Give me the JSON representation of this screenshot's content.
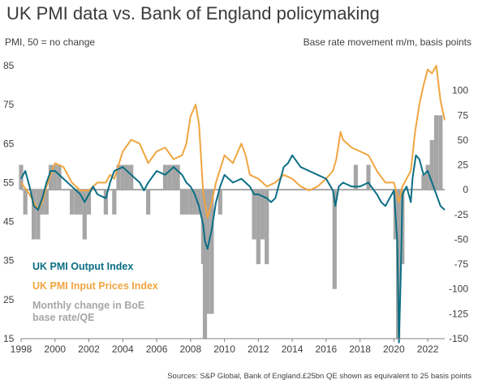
{
  "title": "UK PMI data vs. Bank of England policymaking",
  "left_axis_label": "PMI, 50 = no change",
  "right_axis_label": "Base rate movement m/m, basis points",
  "source": "Sources: S&P Global, Bank of England.£25bn QE shown as equivalent to 25 basis points",
  "legend": {
    "output": "UK PMI Output Index",
    "input": "UK PMI Input Prices Index",
    "boe_line1": "Monthly change in BoE",
    "boe_line2": "base rate/QE"
  },
  "colors": {
    "output": "#0b6e84",
    "input": "#f0a540",
    "boe": "#a6a6a6",
    "zero_line": "#a6a6a6"
  },
  "chart_data": {
    "type": "line",
    "x_ticks": [
      "1998",
      "2000",
      "2002",
      "2004",
      "2006",
      "2008",
      "2010",
      "2012",
      "2014",
      "2016",
      "2018",
      "2020",
      "2022"
    ],
    "xlim": [
      1998,
      2023
    ],
    "y_left": {
      "lim": [
        15,
        85
      ],
      "ticks": [
        15,
        25,
        35,
        45,
        55,
        65,
        75,
        85
      ]
    },
    "y_right": {
      "lim": [
        -150,
        125
      ],
      "ticks": [
        -150,
        -125,
        -100,
        -75,
        -50,
        -25,
        0,
        25,
        50,
        75,
        100
      ]
    },
    "grid": false,
    "series": [
      {
        "name": "UK PMI Output Index",
        "axis": "left",
        "kind": "line",
        "x": [
          1998.0,
          1998.25,
          1998.5,
          1998.75,
          1999.0,
          1999.25,
          1999.5,
          1999.75,
          2000.0,
          2000.5,
          2001.0,
          2001.5,
          2001.75,
          2002.0,
          2002.25,
          2002.5,
          2003.0,
          2003.25,
          2003.5,
          2004.0,
          2004.5,
          2005.0,
          2005.25,
          2005.5,
          2006.0,
          2006.5,
          2007.0,
          2007.5,
          2007.75,
          2008.0,
          2008.25,
          2008.5,
          2008.75,
          2008.85,
          2009.0,
          2009.25,
          2009.5,
          2009.75,
          2010.0,
          2010.5,
          2011.0,
          2011.5,
          2011.75,
          2012.0,
          2012.5,
          2012.75,
          2013.0,
          2013.25,
          2013.5,
          2013.75,
          2014.0,
          2014.5,
          2015.0,
          2015.5,
          2016.0,
          2016.4,
          2016.55,
          2016.75,
          2017.0,
          2017.5,
          2018.0,
          2018.5,
          2019.0,
          2019.25,
          2019.5,
          2019.75,
          2020.0,
          2020.2,
          2020.3,
          2020.4,
          2020.5,
          2020.75,
          2021.0,
          2021.1,
          2021.3,
          2021.5,
          2021.75,
          2022.0,
          2022.25,
          2022.5,
          2022.75,
          2023.0
        ],
        "y": [
          56,
          58,
          54,
          49,
          48,
          51,
          55,
          58,
          58,
          56,
          54,
          52,
          50,
          52,
          54,
          52,
          51,
          55,
          58,
          59,
          57,
          55,
          53,
          55,
          58,
          57,
          59,
          57,
          55,
          54,
          52,
          49,
          44,
          40,
          38,
          43,
          50,
          54,
          57,
          55,
          56,
          54,
          52,
          52,
          51,
          50,
          51,
          55,
          59,
          60,
          62,
          59,
          58,
          57,
          56,
          53,
          49,
          54,
          55,
          54,
          54,
          55,
          52,
          50,
          49,
          51,
          53,
          40,
          14,
          30,
          52,
          54,
          50,
          56,
          62,
          61,
          57,
          58,
          55,
          52,
          49,
          48
        ]
      },
      {
        "name": "UK PMI Input Prices Index",
        "axis": "left",
        "kind": "line",
        "x": [
          1998.0,
          1998.5,
          1999.0,
          1999.25,
          1999.5,
          1999.75,
          2000.0,
          2000.5,
          2001.0,
          2001.5,
          2002.0,
          2002.5,
          2003.0,
          2003.25,
          2003.5,
          2004.0,
          2004.5,
          2005.0,
          2005.5,
          2006.0,
          2006.5,
          2007.0,
          2007.5,
          2007.75,
          2008.0,
          2008.3,
          2008.5,
          2008.75,
          2009.0,
          2009.25,
          2009.5,
          2010.0,
          2010.5,
          2011.0,
          2011.25,
          2011.5,
          2012.0,
          2012.5,
          2013.0,
          2013.5,
          2014.0,
          2014.5,
          2015.0,
          2015.5,
          2016.0,
          2016.4,
          2016.6,
          2016.85,
          2017.0,
          2017.5,
          2018.0,
          2018.5,
          2019.0,
          2019.5,
          2020.0,
          2020.3,
          2020.5,
          2021.0,
          2021.25,
          2021.5,
          2021.75,
          2022.0,
          2022.25,
          2022.5,
          2022.75,
          2023.0
        ],
        "y": [
          55,
          52,
          48,
          50,
          54,
          57,
          60,
          59,
          55,
          53,
          53,
          55,
          55,
          57,
          56,
          63,
          66,
          65,
          60,
          63,
          64,
          61,
          62,
          65,
          72,
          75,
          70,
          52,
          46,
          50,
          55,
          62,
          60,
          65,
          62,
          57,
          56,
          54,
          55,
          57,
          56,
          54,
          53,
          54,
          56,
          58,
          61,
          68,
          66,
          64,
          63,
          62,
          58,
          55,
          55,
          50,
          54,
          58,
          68,
          75,
          80,
          84,
          83,
          85,
          76,
          71
        ]
      },
      {
        "name": "Monthly change in BoE base rate/QE",
        "axis": "right",
        "kind": "bar",
        "x": [
          1998.0,
          1998.25,
          1998.75,
          1999.0,
          1999.25,
          1999.5,
          1999.75,
          2000.0,
          2000.25,
          2001.0,
          2001.25,
          2001.5,
          2001.75,
          2002.0,
          2003.0,
          2003.5,
          2003.75,
          2004.0,
          2004.25,
          2004.5,
          2005.5,
          2006.5,
          2006.75,
          2007.0,
          2007.25,
          2007.5,
          2007.75,
          2008.0,
          2008.25,
          2008.5,
          2008.75,
          2008.85,
          2009.0,
          2009.1,
          2009.25,
          2009.75,
          2011.75,
          2012.0,
          2012.25,
          2012.5,
          2016.5,
          2017.75,
          2018.5,
          2020.1,
          2020.25,
          2020.5,
          2021.75,
          2022.0,
          2022.25,
          2022.5,
          2022.75
        ],
        "values": [
          25,
          -25,
          -50,
          -50,
          -25,
          -25,
          25,
          25,
          25,
          -25,
          -25,
          -25,
          -50,
          -25,
          -25,
          -25,
          25,
          25,
          25,
          25,
          -25,
          25,
          25,
          25,
          25,
          -25,
          -25,
          -25,
          -25,
          -25,
          -75,
          -150,
          -125,
          -25,
          -125,
          -25,
          -50,
          -75,
          -50,
          -75,
          -100,
          25,
          25,
          -50,
          -150,
          -75,
          15,
          25,
          50,
          75,
          75
        ]
      }
    ]
  }
}
